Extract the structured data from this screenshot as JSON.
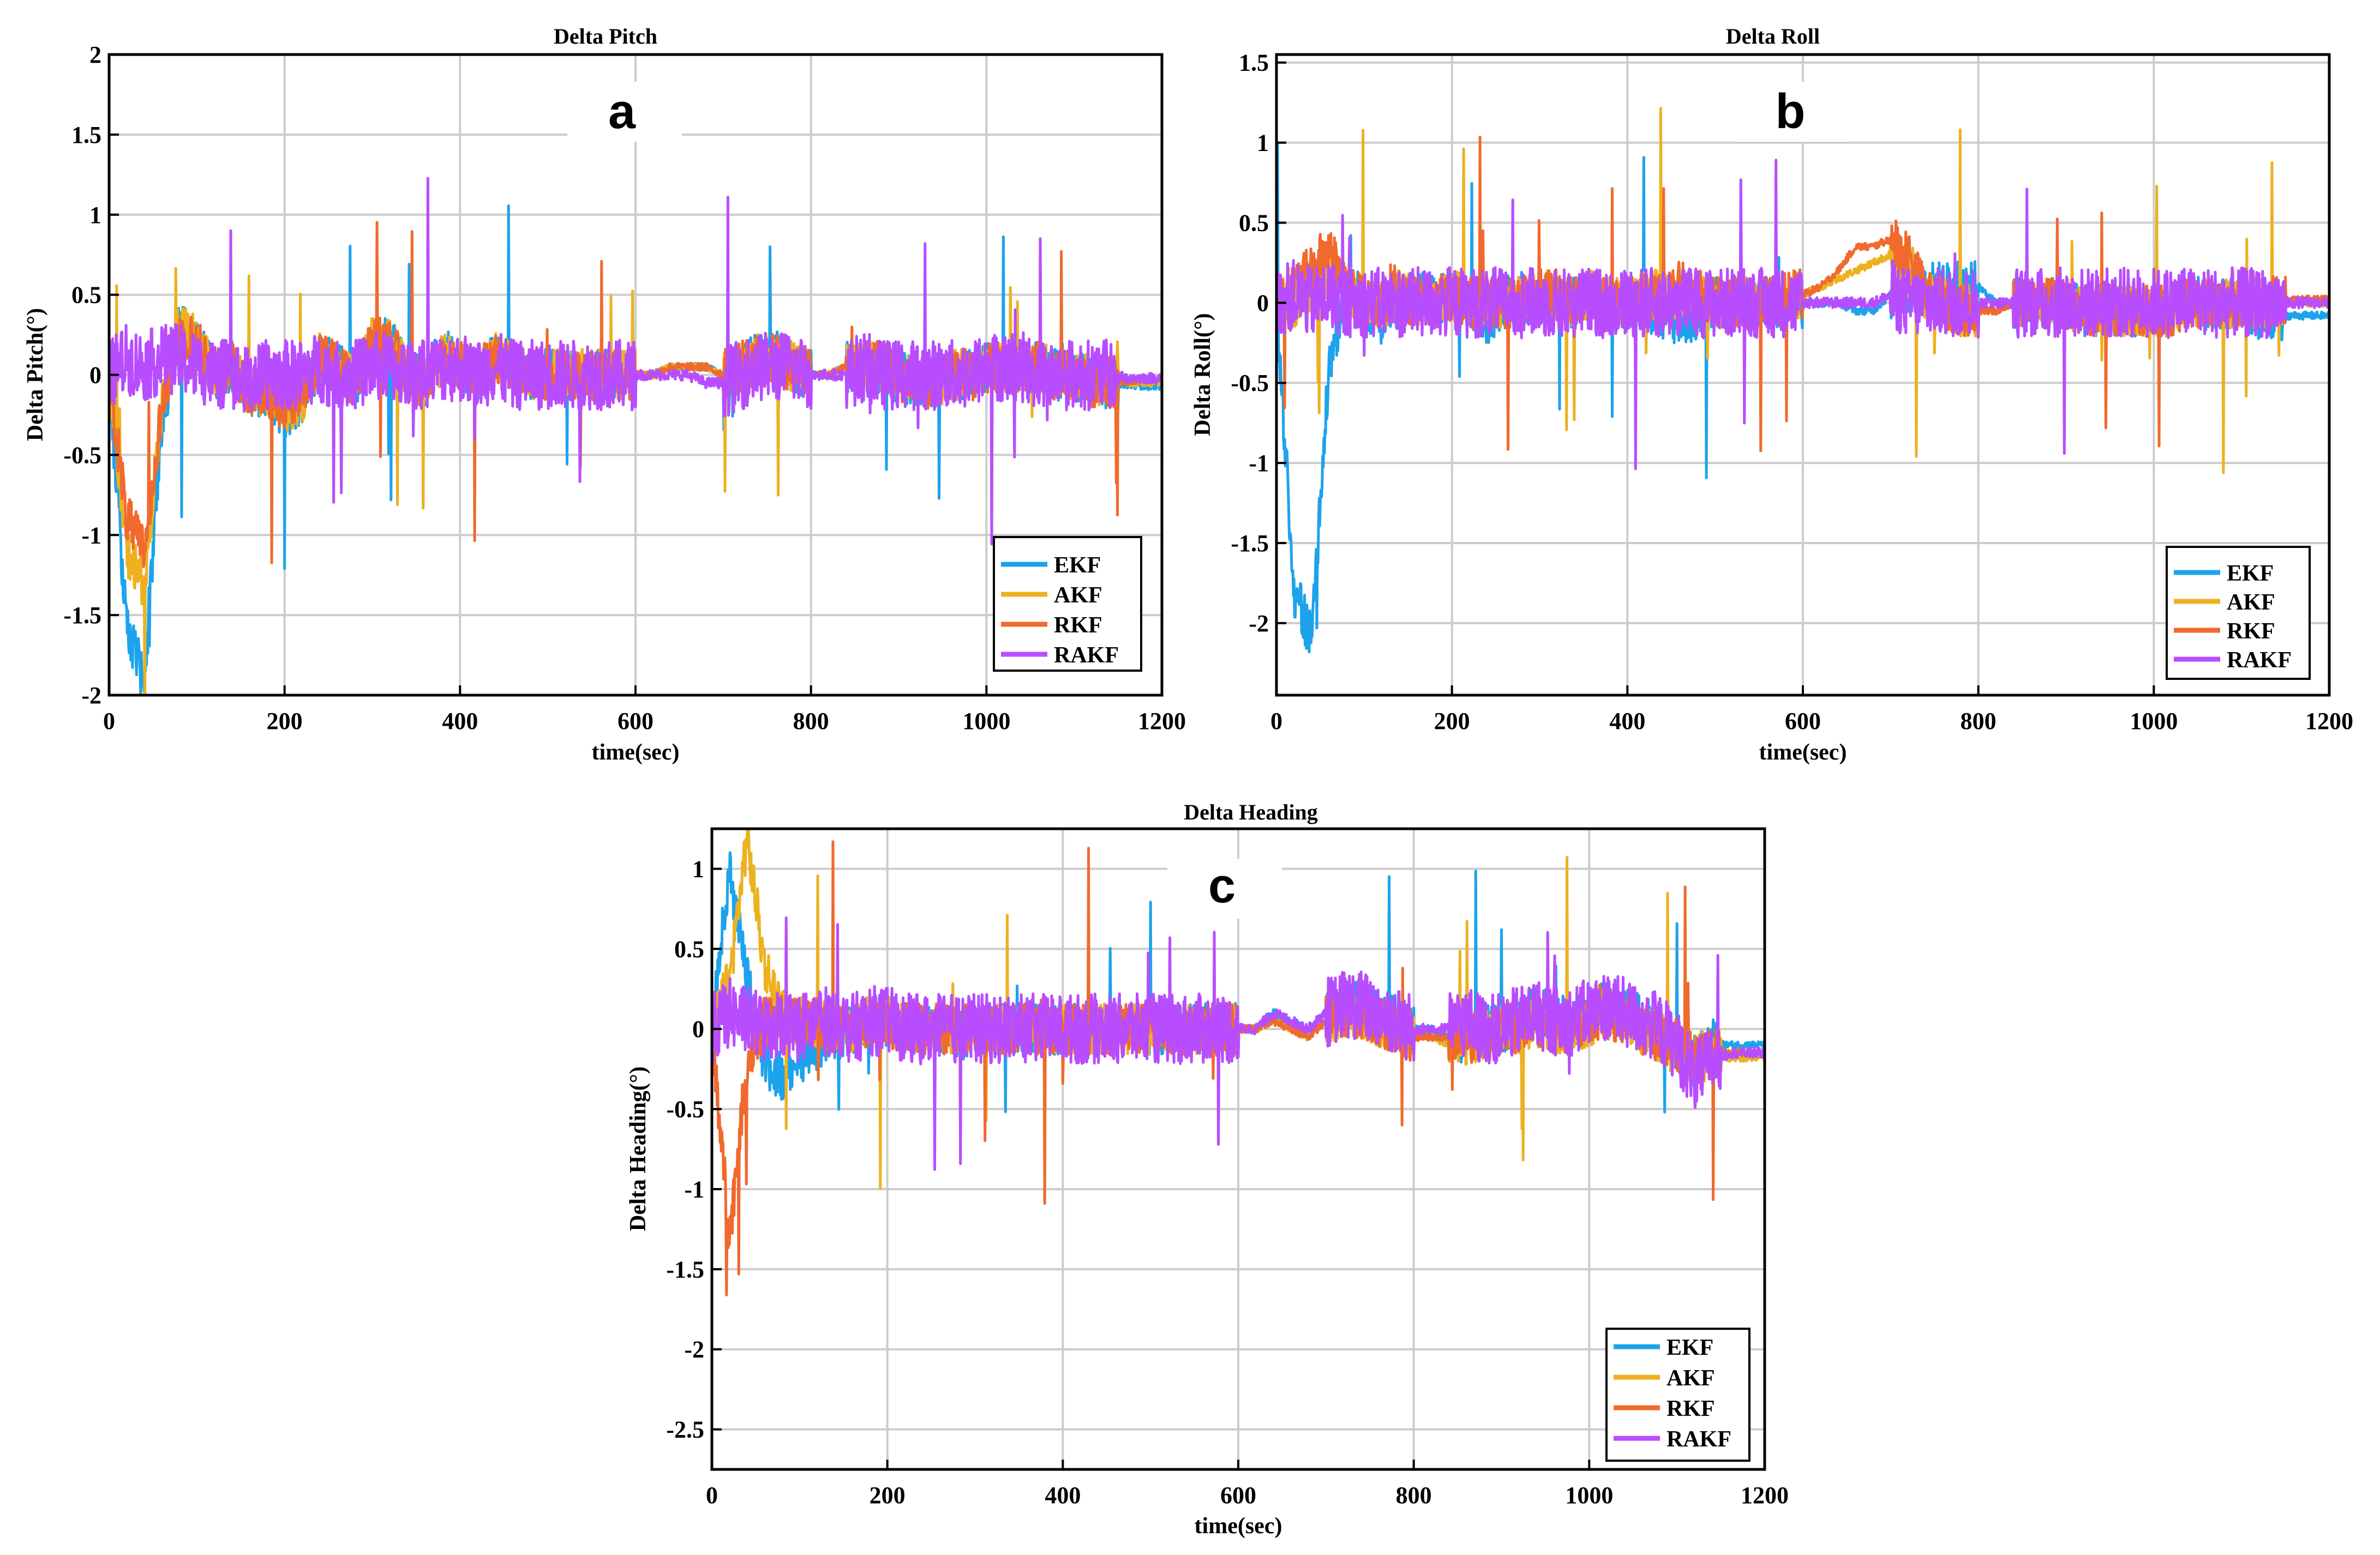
{
  "figure": {
    "colors": {
      "EKF": "#1CA3EC",
      "AKF": "#EDB120",
      "RKF": "#F06A2D",
      "RAKF": "#B84DFF",
      "grid": "#cccccc",
      "axis": "#000000"
    }
  },
  "chart_data": [
    {
      "type": "line",
      "panel_label": "a",
      "title": "Delta Pitch",
      "xlabel": "time(sec)",
      "ylabel": "Delta Pitch(°)",
      "xlim": [
        0,
        1200
      ],
      "ylim": [
        -2,
        2
      ],
      "xticks": [
        0,
        200,
        400,
        600,
        800,
        1000,
        1200
      ],
      "yticks": [
        -2,
        -1.5,
        -1,
        -0.5,
        0,
        0.5,
        1,
        1.5,
        2
      ],
      "grid": true,
      "legend": "bottom-right",
      "legend_entries": [
        "EKF",
        "AKF",
        "RKF",
        "RAKF"
      ],
      "x_step": 20,
      "series": [
        {
          "name": "EKF",
          "values": [
            0.0,
            -1.6,
            -1.9,
            -0.3,
            0.3,
            0.2,
            0.0,
            0.05,
            -0.1,
            -0.1,
            -0.25,
            -0.15,
            0.1,
            0.05,
            -0.05,
            0.2,
            0.25,
            0.0,
            -0.05,
            0.15,
            0.05,
            0.0,
            0.1,
            0.05,
            0.0,
            0.0,
            0.0,
            0.0,
            0.0,
            0.0,
            0.0,
            0.0,
            0.05,
            0.05,
            0.05,
            0.0,
            0.05,
            0.1,
            0.15,
            0.05,
            0.0,
            0.0,
            0.05,
            0.05,
            0.05,
            0.0,
            -0.05,
            -0.05,
            0.0,
            0.0,
            0.05,
            0.05,
            0.05,
            0.05,
            0.0,
            0.0,
            -0.05,
            -0.05,
            -0.06,
            -0.07,
            -0.07
          ]
        },
        {
          "name": "AKF",
          "values": [
            0.0,
            -1.1,
            -1.3,
            -0.2,
            0.3,
            0.2,
            0.0,
            0.05,
            -0.1,
            -0.1,
            -0.2,
            -0.15,
            0.1,
            0.05,
            -0.05,
            0.2,
            0.2,
            0.0,
            -0.05,
            0.1,
            0.05,
            0.0,
            0.1,
            0.05,
            0.0,
            0.0,
            0.0,
            0.0,
            0.0,
            0.0,
            0.0,
            0.0,
            0.05,
            0.05,
            0.05,
            0.0,
            0.05,
            0.1,
            0.1,
            0.05,
            0.0,
            0.0,
            0.05,
            0.05,
            0.05,
            0.0,
            -0.05,
            -0.05,
            0.0,
            0.0,
            0.05,
            0.05,
            0.05,
            0.05,
            0.0,
            0.0,
            -0.05,
            -0.05,
            -0.05,
            -0.05,
            -0.05
          ]
        },
        {
          "name": "RKF",
          "values": [
            0.0,
            -0.9,
            -1.1,
            -0.2,
            0.25,
            0.2,
            0.0,
            0.05,
            -0.1,
            -0.1,
            -0.2,
            -0.1,
            0.1,
            0.05,
            -0.05,
            0.2,
            0.2,
            0.0,
            -0.05,
            0.1,
            0.05,
            0.0,
            0.1,
            0.05,
            0.0,
            0.0,
            0.0,
            0.0,
            0.0,
            0.0,
            0.0,
            0.0,
            0.05,
            0.05,
            0.05,
            0.0,
            0.05,
            0.1,
            0.1,
            0.05,
            0.0,
            0.0,
            0.05,
            0.05,
            0.05,
            0.0,
            -0.05,
            -0.05,
            0.0,
            0.0,
            0.05,
            0.05,
            0.05,
            0.05,
            0.0,
            0.0,
            -0.05,
            -0.05,
            -0.04,
            -0.03,
            -0.03
          ]
        },
        {
          "name": "RAKF",
          "values": [
            0.0,
            0.1,
            0.05,
            0.1,
            0.1,
            0.05,
            0.0,
            0.0,
            -0.05,
            0.0,
            0.0,
            0.0,
            0.05,
            0.0,
            0.0,
            0.05,
            0.05,
            0.0,
            0.0,
            0.05,
            0.05,
            0.0,
            0.05,
            0.0,
            0.0,
            0.0,
            0.0,
            0.0,
            0.0,
            0.0,
            0.0,
            0.0,
            0.0,
            0.0,
            -0.05,
            -0.05,
            0.0,
            0.05,
            0.05,
            0.05,
            0.0,
            0.0,
            0.0,
            0.05,
            0.0,
            0.0,
            0.0,
            0.0,
            0.0,
            0.0,
            0.05,
            0.05,
            0.05,
            0.0,
            0.0,
            0.0,
            0.0,
            0.0,
            -0.02,
            -0.02,
            -0.02
          ]
        }
      ]
    },
    {
      "type": "line",
      "panel_label": "b",
      "title": "Delta Roll",
      "xlabel": "time(sec)",
      "ylabel": "Delta Roll(°)",
      "xlim": [
        0,
        1200
      ],
      "ylim": [
        -2.45,
        1.55
      ],
      "xticks": [
        0,
        200,
        400,
        600,
        800,
        1000,
        1200
      ],
      "yticks": [
        -2,
        -1.5,
        -1,
        -0.5,
        0,
        0.5,
        1,
        1.5
      ],
      "grid": true,
      "legend": "bottom-right",
      "legend_entries": [
        "EKF",
        "AKF",
        "RKF",
        "RAKF"
      ],
      "x_step": 20,
      "series": [
        {
          "name": "EKF",
          "values": [
            0.0,
            -1.8,
            -2.1,
            -0.4,
            0.1,
            0.0,
            -0.1,
            0.0,
            0.05,
            0.0,
            0.05,
            0.0,
            -0.1,
            0.0,
            0.05,
            0.0,
            0.0,
            0.0,
            0.05,
            0.0,
            0.0,
            0.0,
            -0.1,
            -0.1,
            -0.1,
            0.0,
            0.0,
            0.05,
            0.0,
            0.0,
            0.0,
            0.0,
            0.0,
            -0.05,
            -0.05,
            0.05,
            0.1,
            0.1,
            0.1,
            0.1,
            0.1,
            0.0,
            0.0,
            0.0,
            0.0,
            0.0,
            -0.05,
            -0.05,
            -0.05,
            -0.05,
            -0.05,
            -0.05,
            0.0,
            0.0,
            0.0,
            0.0,
            -0.08,
            -0.08,
            -0.08,
            -0.08,
            -0.08
          ]
        },
        {
          "name": "AKF",
          "values": [
            0.0,
            0.0,
            0.1,
            0.2,
            0.1,
            0.0,
            0.0,
            0.05,
            0.0,
            0.0,
            0.05,
            0.0,
            0.0,
            0.0,
            0.0,
            0.05,
            0.05,
            0.0,
            0.05,
            0.0,
            0.0,
            0.05,
            0.05,
            0.05,
            0.05,
            0.0,
            0.0,
            0.0,
            0.0,
            0.05,
            0.05,
            0.1,
            0.15,
            0.2,
            0.25,
            0.3,
            0.2,
            0.05,
            0.0,
            -0.05,
            -0.05,
            -0.05,
            0.0,
            0.0,
            0.0,
            0.0,
            -0.05,
            -0.05,
            -0.05,
            -0.05,
            -0.05,
            -0.05,
            0.0,
            0.0,
            0.0,
            0.0,
            0.0,
            0.0,
            0.0,
            0.0,
            0.0
          ]
        },
        {
          "name": "RKF",
          "values": [
            0.0,
            0.1,
            0.2,
            0.35,
            0.1,
            0.0,
            0.0,
            0.05,
            0.0,
            0.0,
            0.05,
            0.0,
            0.0,
            0.0,
            0.0,
            0.05,
            0.05,
            0.0,
            0.05,
            0.0,
            0.0,
            0.05,
            0.05,
            0.1,
            0.05,
            0.0,
            0.0,
            0.0,
            0.0,
            0.05,
            0.05,
            0.1,
            0.2,
            0.35,
            0.35,
            0.4,
            0.3,
            0.05,
            0.0,
            -0.05,
            -0.05,
            -0.05,
            0.0,
            0.0,
            0.0,
            0.0,
            -0.05,
            -0.05,
            -0.05,
            -0.05,
            -0.05,
            -0.05,
            0.0,
            0.0,
            0.0,
            0.0,
            0.02,
            0.02,
            0.02,
            0.02,
            0.02
          ]
        },
        {
          "name": "RAKF",
          "values": [
            0.0,
            0.05,
            0.0,
            0.05,
            0.0,
            0.0,
            0.0,
            0.0,
            0.0,
            0.0,
            0.0,
            0.0,
            0.0,
            0.0,
            0.0,
            0.0,
            0.0,
            0.0,
            0.0,
            0.0,
            0.0,
            0.0,
            0.0,
            0.0,
            0.0,
            0.0,
            0.0,
            0.0,
            0.0,
            0.0,
            0.0,
            0.0,
            0.0,
            0.0,
            0.0,
            0.05,
            0.0,
            0.0,
            0.0,
            0.0,
            0.0,
            0.0,
            0.0,
            0.0,
            0.0,
            0.0,
            0.0,
            0.0,
            0.0,
            0.0,
            0.0,
            0.0,
            0.0,
            0.0,
            0.0,
            0.0,
            0.0,
            0.0,
            0.0,
            0.0,
            0.0
          ]
        }
      ]
    },
    {
      "type": "line",
      "panel_label": "c",
      "title": "Delta Heading",
      "xlabel": "time(sec)",
      "ylabel": "Delta Heading(°)",
      "xlim": [
        0,
        1200
      ],
      "ylim": [
        -2.75,
        1.25
      ],
      "xticks": [
        0,
        200,
        400,
        600,
        800,
        1000,
        1200
      ],
      "yticks": [
        -2.5,
        -2,
        -1.5,
        -1,
        -0.5,
        0,
        0.5,
        1
      ],
      "grid": true,
      "legend": "bottom-right",
      "legend_entries": [
        "EKF",
        "AKF",
        "RKF",
        "RAKF"
      ],
      "x_step": 20,
      "series": [
        {
          "name": "EKF",
          "values": [
            0.0,
            1.0,
            0.3,
            -0.2,
            -0.3,
            -0.2,
            -0.1,
            -0.05,
            0.0,
            0.05,
            0.05,
            0.0,
            0.0,
            0.0,
            -0.05,
            0.0,
            0.0,
            0.0,
            0.0,
            0.0,
            0.0,
            0.0,
            0.0,
            0.0,
            0.0,
            0.0,
            0.0,
            0.0,
            0.0,
            0.0,
            0.0,
            0.0,
            0.1,
            0.05,
            0.0,
            0.1,
            0.15,
            0.15,
            0.1,
            0.05,
            0.0,
            0.0,
            -0.05,
            -0.05,
            0.0,
            0.0,
            0.05,
            0.1,
            0.05,
            0.05,
            0.1,
            0.15,
            0.1,
            0.05,
            0.0,
            -0.1,
            -0.2,
            -0.1,
            -0.1,
            -0.1,
            -0.1
          ]
        },
        {
          "name": "AKF",
          "values": [
            0.0,
            0.3,
            1.2,
            0.4,
            0.1,
            0.05,
            0.05,
            0.0,
            0.0,
            0.05,
            0.05,
            0.0,
            0.0,
            0.0,
            0.0,
            0.0,
            0.0,
            0.0,
            0.0,
            0.0,
            0.0,
            0.0,
            0.0,
            0.0,
            0.0,
            0.0,
            0.0,
            0.0,
            0.0,
            0.0,
            0.0,
            0.0,
            0.05,
            0.0,
            -0.05,
            0.05,
            0.1,
            0.1,
            0.05,
            0.0,
            -0.05,
            -0.05,
            -0.1,
            -0.1,
            -0.05,
            0.0,
            0.0,
            0.05,
            0.0,
            0.0,
            0.05,
            0.1,
            0.05,
            0.0,
            -0.05,
            -0.15,
            -0.2,
            -0.15,
            -0.18,
            -0.18,
            -0.18
          ]
        },
        {
          "name": "RKF",
          "values": [
            0.0,
            -1.3,
            -0.2,
            0.05,
            0.05,
            0.05,
            0.05,
            0.0,
            0.0,
            0.05,
            0.05,
            0.0,
            0.0,
            0.0,
            0.0,
            0.0,
            0.0,
            0.0,
            0.0,
            0.0,
            0.0,
            0.0,
            0.0,
            0.0,
            0.0,
            0.0,
            0.0,
            0.0,
            0.0,
            0.0,
            0.0,
            0.0,
            0.05,
            0.0,
            -0.05,
            0.05,
            0.1,
            0.1,
            0.05,
            0.0,
            -0.05,
            -0.05,
            -0.05,
            -0.05,
            -0.05,
            0.0,
            0.0,
            0.05,
            0.0,
            0.0,
            0.05,
            0.1,
            0.05,
            0.0,
            -0.05,
            -0.1,
            -0.2,
            -0.15,
            -0.15,
            -0.15,
            -0.15
          ]
        },
        {
          "name": "RAKF",
          "values": [
            0.0,
            0.1,
            0.05,
            0.0,
            0.05,
            0.0,
            0.05,
            0.05,
            0.0,
            0.05,
            0.05,
            0.0,
            0.0,
            0.0,
            0.0,
            0.0,
            0.0,
            0.0,
            0.0,
            0.0,
            0.0,
            0.0,
            0.0,
            0.0,
            0.0,
            0.0,
            0.0,
            0.0,
            0.0,
            0.0,
            0.0,
            0.0,
            0.1,
            0.05,
            0.0,
            0.1,
            0.15,
            0.15,
            0.1,
            0.05,
            0.0,
            0.0,
            0.0,
            0.05,
            0.0,
            0.0,
            0.05,
            0.1,
            0.05,
            0.05,
            0.1,
            0.15,
            0.1,
            0.05,
            0.0,
            -0.1,
            -0.3,
            -0.2,
            -0.15,
            -0.15,
            -0.15
          ]
        }
      ]
    }
  ]
}
